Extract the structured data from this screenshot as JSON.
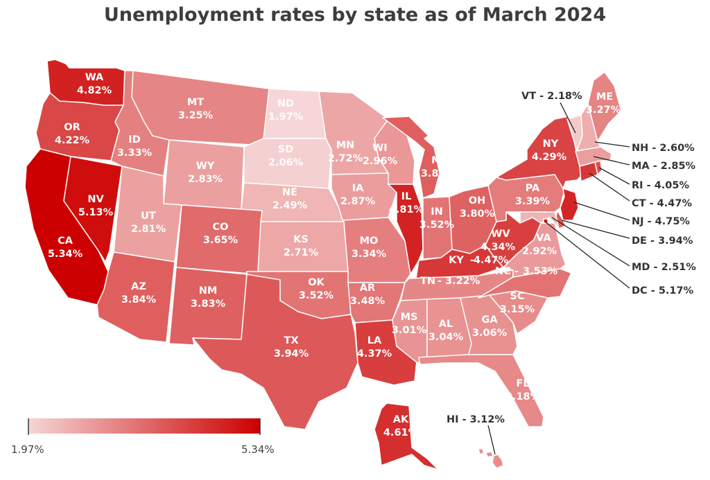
{
  "title": "Unemployment rates by state as of March 2024",
  "legend": {
    "min_label": "1.97%",
    "max_label": "5.34%",
    "min": 1.97,
    "max": 5.34,
    "color_low": "#f6d6d6",
    "color_high": "#cc0000"
  },
  "states": [
    {
      "abbr": "WA",
      "value": "4.82%"
    },
    {
      "abbr": "OR",
      "value": "4.22%"
    },
    {
      "abbr": "CA",
      "value": "5.34%"
    },
    {
      "abbr": "NV",
      "value": "5.13%"
    },
    {
      "abbr": "ID",
      "value": "3.33%"
    },
    {
      "abbr": "MT",
      "value": "3.25%"
    },
    {
      "abbr": "WY",
      "value": "2.83%"
    },
    {
      "abbr": "UT",
      "value": "2.81%"
    },
    {
      "abbr": "AZ",
      "value": "3.84%"
    },
    {
      "abbr": "CO",
      "value": "3.65%"
    },
    {
      "abbr": "NM",
      "value": "3.83%"
    },
    {
      "abbr": "ND",
      "value": "1.97%"
    },
    {
      "abbr": "SD",
      "value": "2.06%"
    },
    {
      "abbr": "NE",
      "value": "2.49%"
    },
    {
      "abbr": "KS",
      "value": "2.71%"
    },
    {
      "abbr": "OK",
      "value": "3.52%"
    },
    {
      "abbr": "TX",
      "value": "3.94%"
    },
    {
      "abbr": "MN",
      "value": "2.72%"
    },
    {
      "abbr": "IA",
      "value": "2.87%"
    },
    {
      "abbr": "MO",
      "value": "3.34%"
    },
    {
      "abbr": "AR",
      "value": "3.48%"
    },
    {
      "abbr": "LA",
      "value": "4.37%"
    },
    {
      "abbr": "WI",
      "value": "2.96%"
    },
    {
      "abbr": "IL",
      "value": "4.81%"
    },
    {
      "abbr": "MI",
      "value": "3.85%"
    },
    {
      "abbr": "IN",
      "value": "3.52%"
    },
    {
      "abbr": "OH",
      "value": "3.80%"
    },
    {
      "abbr": "KY",
      "value": "4.47%"
    },
    {
      "abbr": "TN",
      "value": "3.22%"
    },
    {
      "abbr": "MS",
      "value": "3.01%"
    },
    {
      "abbr": "AL",
      "value": "3.04%"
    },
    {
      "abbr": "GA",
      "value": "3.06%"
    },
    {
      "abbr": "FL",
      "value": "3.18%"
    },
    {
      "abbr": "SC",
      "value": "3.15%"
    },
    {
      "abbr": "NC",
      "value": "3.53%"
    },
    {
      "abbr": "VA",
      "value": "2.92%"
    },
    {
      "abbr": "WV",
      "value": "4.34%"
    },
    {
      "abbr": "PA",
      "value": "3.39%"
    },
    {
      "abbr": "NY",
      "value": "4.29%"
    },
    {
      "abbr": "ME",
      "value": "3.27%"
    },
    {
      "abbr": "AK",
      "value": "4.61%"
    },
    {
      "abbr": "VT",
      "value": "2.18%"
    },
    {
      "abbr": "NH",
      "value": "2.60%"
    },
    {
      "abbr": "MA",
      "value": "2.85%"
    },
    {
      "abbr": "RI",
      "value": "4.05%"
    },
    {
      "abbr": "CT",
      "value": "4.47%"
    },
    {
      "abbr": "NJ",
      "value": "4.75%"
    },
    {
      "abbr": "DE",
      "value": "3.94%"
    },
    {
      "abbr": "MD",
      "value": "2.51%"
    },
    {
      "abbr": "DC",
      "value": "5.17%"
    },
    {
      "abbr": "HI",
      "value": "3.12%"
    }
  ]
}
